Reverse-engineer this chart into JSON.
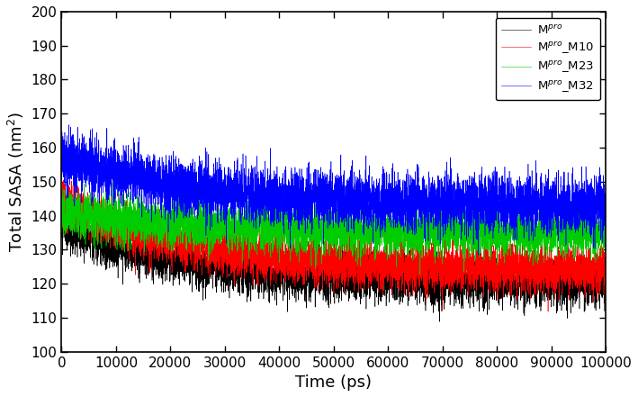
{
  "title": "",
  "xlabel": "Time (ps)",
  "ylabel": "Total SASA (nm$^2$)",
  "xlim": [
    0,
    100000
  ],
  "ylim": [
    100,
    200
  ],
  "yticks": [
    100,
    110,
    120,
    130,
    140,
    150,
    160,
    170,
    180,
    190,
    200
  ],
  "xticks": [
    0,
    10000,
    20000,
    30000,
    40000,
    50000,
    60000,
    70000,
    80000,
    90000,
    100000
  ],
  "xtick_labels": [
    "0",
    "10000",
    "20000",
    "30000",
    "40000",
    "50000",
    "60000",
    "70000",
    "80000",
    "90000",
    "100000"
  ],
  "series": [
    {
      "label": "M$^{pro}$",
      "color": "black",
      "start_mean": 137,
      "end_mean": 120,
      "noise_amp": 4.5,
      "linewidth": 0.4,
      "seed": 10
    },
    {
      "label": "M$^{pro}$_M10",
      "color": "red",
      "start_mean": 144,
      "end_mean": 124,
      "noise_amp": 4.5,
      "linewidth": 0.4,
      "seed": 20
    },
    {
      "label": "M$^{pro}$_M23",
      "color": "#00cc00",
      "start_mean": 141,
      "end_mean": 135,
      "noise_amp": 4.5,
      "linewidth": 0.4,
      "seed": 30
    },
    {
      "label": "M$^{pro}$_M32",
      "color": "blue",
      "start_mean": 157,
      "end_mean": 143,
      "noise_amp": 5.5,
      "linewidth": 0.4,
      "seed": 40
    }
  ],
  "n_points": 10001,
  "legend_loc": "upper right",
  "legend_fontsize": 9.5,
  "tick_fontsize": 11,
  "label_fontsize": 13,
  "figsize": [
    7.09,
    4.41
  ],
  "dpi": 100
}
